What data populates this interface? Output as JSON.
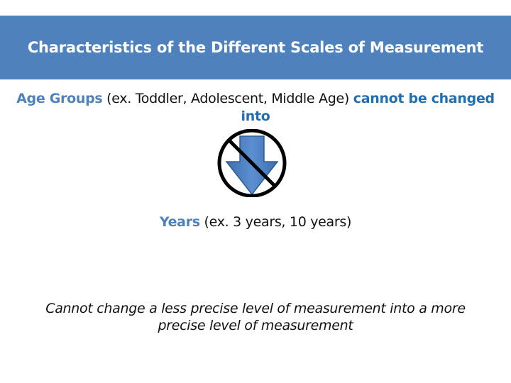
{
  "slide": {
    "title": "Characteristics of the Different Scales of Measurement",
    "line1": {
      "term": "Age Groups",
      "example": " (ex. Toddler, Adolescent, Middle Age) ",
      "emphasis": "cannot be changed into"
    },
    "icon": "prohibited-down-arrow-icon",
    "line2": {
      "term": "Years",
      "example": " (ex. 3 years, 10 years)"
    },
    "conclusion": "Cannot change a less precise level of measurement into a more precise level of measurement"
  },
  "colors": {
    "header_bg": "#4f81bd",
    "accent": "#4f81bd",
    "accent_strong": "#1f6fb5",
    "arrow_fill": "#4a7ebf"
  }
}
